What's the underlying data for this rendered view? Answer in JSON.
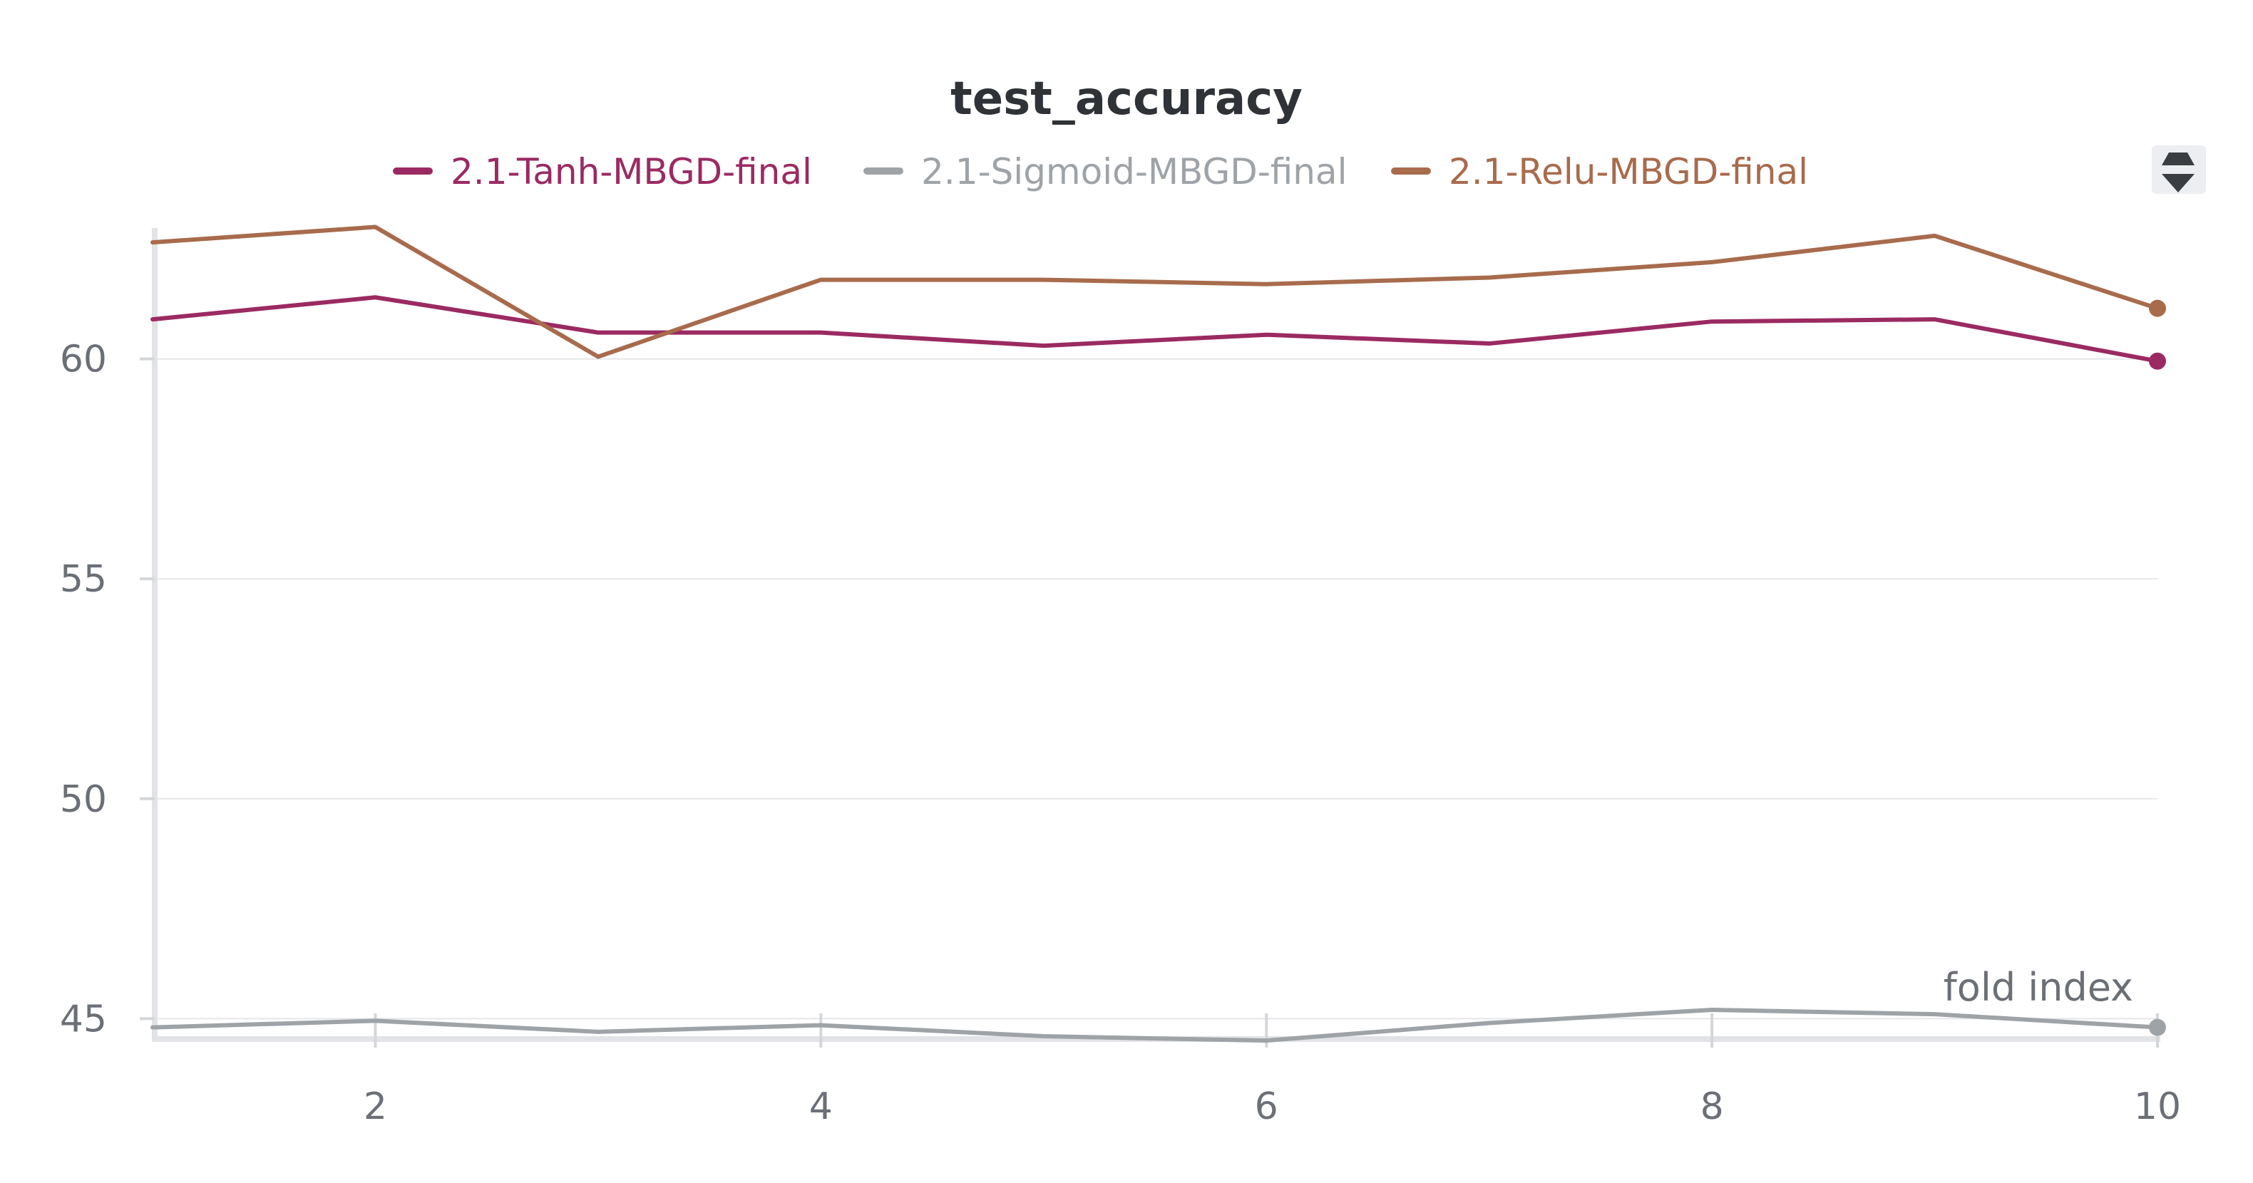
{
  "chart_data": {
    "type": "line",
    "title": "test_accuracy",
    "xlabel": "fold index",
    "ylabel": "",
    "x": [
      1,
      2,
      3,
      4,
      5,
      6,
      7,
      8,
      9,
      10
    ],
    "xticks": [
      2,
      4,
      6,
      8,
      10
    ],
    "yticks": [
      45,
      50,
      55,
      60
    ],
    "xlim": [
      1,
      10
    ],
    "ylim": [
      44.6,
      63.3
    ],
    "grid": true,
    "legend_position": "top",
    "series": [
      {
        "name": "2.1-Tanh-MBGD-final",
        "color": "#9b2a62",
        "values": [
          60.9,
          61.4,
          60.6,
          60.6,
          60.3,
          60.55,
          60.35,
          60.85,
          60.9,
          59.95
        ]
      },
      {
        "name": "2.1-Sigmoid-MBGD-final",
        "color": "#9ea3a8",
        "values": [
          44.8,
          44.95,
          44.7,
          44.85,
          44.6,
          44.5,
          44.9,
          45.2,
          45.1,
          44.8
        ]
      },
      {
        "name": "2.1-Relu-MBGD-final",
        "color": "#a86b4c",
        "values": [
          62.65,
          63.0,
          60.05,
          61.8,
          61.8,
          61.7,
          61.85,
          62.2,
          62.8,
          61.15
        ]
      }
    ]
  }
}
